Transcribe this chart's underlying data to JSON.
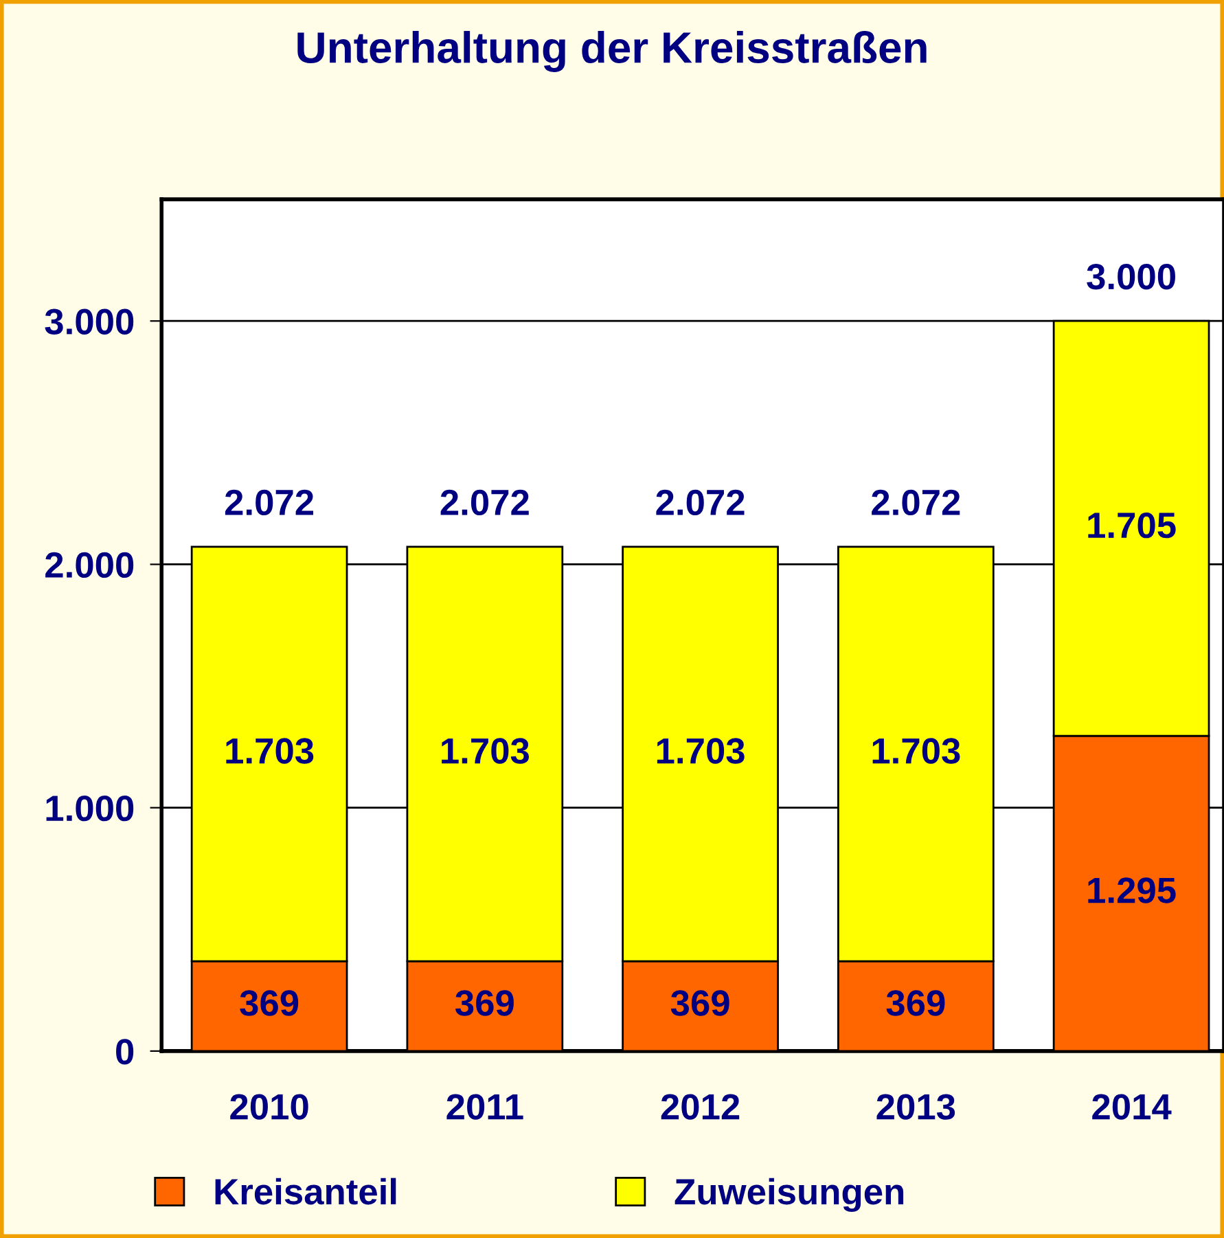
{
  "chart_data": {
    "type": "bar",
    "title": "Unterhaltung der Kreisstraßen",
    "categories": [
      "2010",
      "2011",
      "2012",
      "2013",
      "2014"
    ],
    "stacked": true,
    "series": [
      {
        "name": "Kreisanteil",
        "color": "#ff6600",
        "values": [
          369,
          369,
          369,
          369,
          1295
        ],
        "value_labels": [
          "369",
          "369",
          "369",
          "369",
          "1.295"
        ]
      },
      {
        "name": "Zuweisungen",
        "color": "#ffff00",
        "values": [
          1703,
          1703,
          1703,
          1703,
          1705
        ],
        "value_labels": [
          "1.703",
          "1.703",
          "1.703",
          "1.703",
          "1.705"
        ]
      }
    ],
    "totals": [
      "2.072",
      "2.072",
      "2.072",
      "2.072",
      "3.000"
    ],
    "ylim": [
      0,
      3500
    ],
    "yticks": [
      0,
      {
        "value": 1000,
        "label": "1.000"
      },
      {
        "value": 2000,
        "label": "2.000"
      },
      {
        "value": 3000,
        "label": "3.000"
      }
    ],
    "grid": "y",
    "legend": "bottom"
  }
}
